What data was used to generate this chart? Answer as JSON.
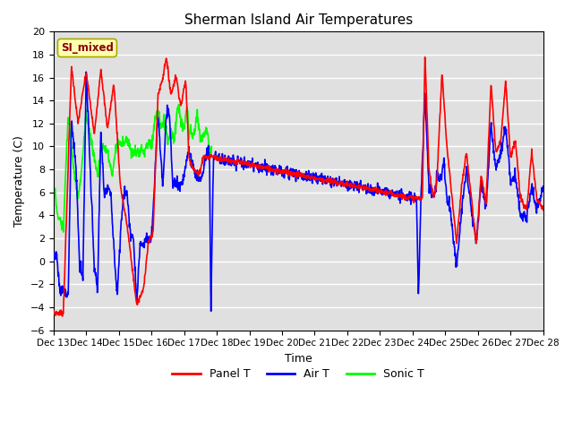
{
  "title": "Sherman Island Air Temperatures",
  "xlabel": "Time",
  "ylabel": "Temperature (C)",
  "ylim": [
    -6,
    20
  ],
  "bg_color": "#e0e0e0",
  "grid_color": "white",
  "tick_labels": [
    "Dec 13",
    "Dec 14",
    "Dec 15",
    "Dec 16",
    "Dec 17",
    "Dec 18",
    "Dec 19",
    "Dec 20",
    "Dec 21",
    "Dec 22",
    "Dec 23",
    "Dec 24",
    "Dec 25",
    "Dec 26",
    "Dec 27",
    "Dec 28"
  ],
  "yticks": [
    -6,
    -4,
    -2,
    0,
    2,
    4,
    6,
    8,
    10,
    12,
    14,
    16,
    18,
    20
  ],
  "annotation": "SI_mixed"
}
